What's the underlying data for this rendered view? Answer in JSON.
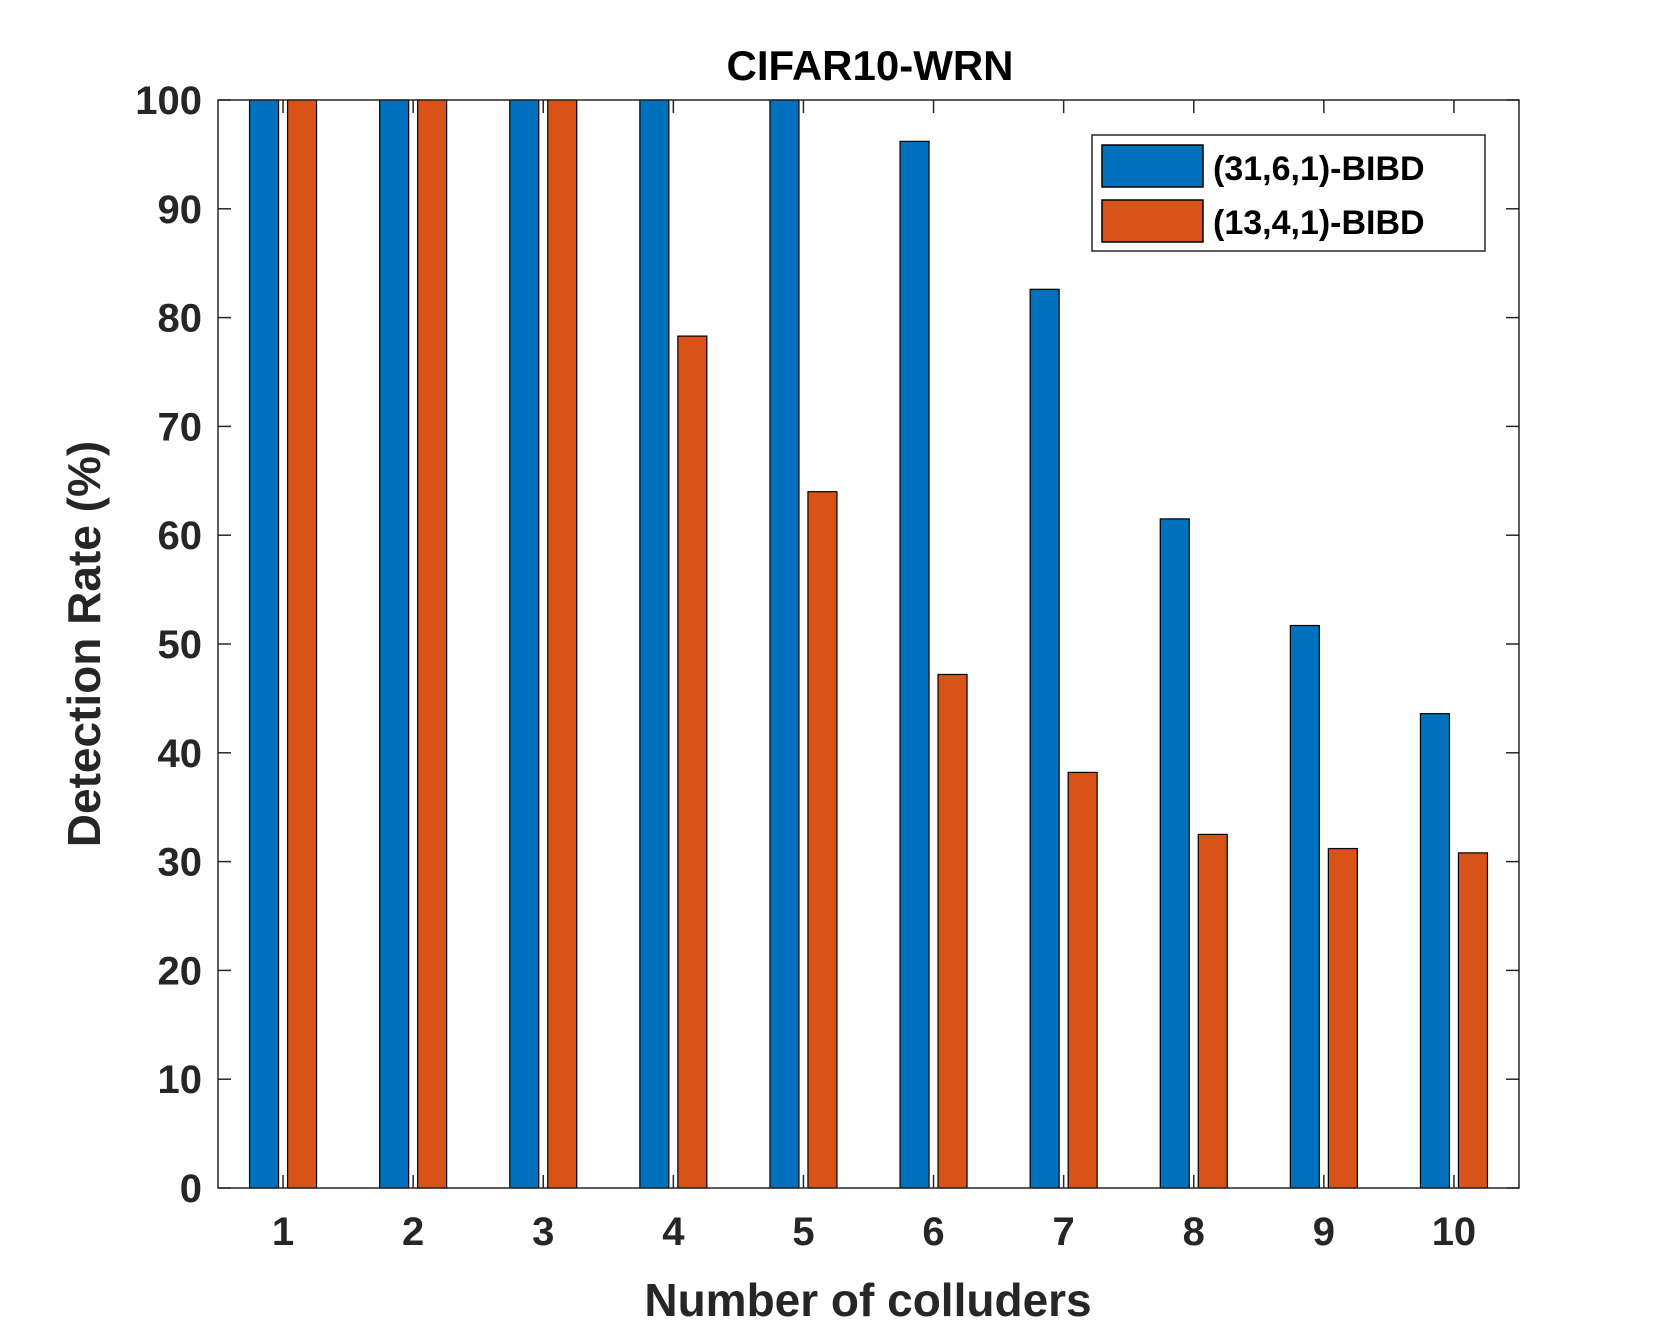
{
  "chart_data": {
    "type": "bar",
    "title": "CIFAR10-WRN",
    "xlabel": "Number of colluders",
    "ylabel": "Detection Rate (%)",
    "categories": [
      "1",
      "2",
      "3",
      "4",
      "5",
      "6",
      "7",
      "8",
      "9",
      "10"
    ],
    "series": [
      {
        "name": "(31,6,1)-BIBD",
        "color": "#0072BD",
        "values": [
          100,
          100,
          100,
          100,
          100,
          96.2,
          82.6,
          61.5,
          51.7,
          43.6
        ]
      },
      {
        "name": "(13,4,1)-BIBD",
        "color": "#D95319",
        "values": [
          100,
          100,
          100,
          78.3,
          64.0,
          47.2,
          38.2,
          32.5,
          31.2,
          30.8
        ]
      }
    ],
    "ylim": [
      0,
      100
    ],
    "yticks": [
      "0",
      "10",
      "20",
      "30",
      "40",
      "50",
      "60",
      "70",
      "80",
      "90",
      "100"
    ],
    "legend_position": "top-right",
    "grid": false
  }
}
